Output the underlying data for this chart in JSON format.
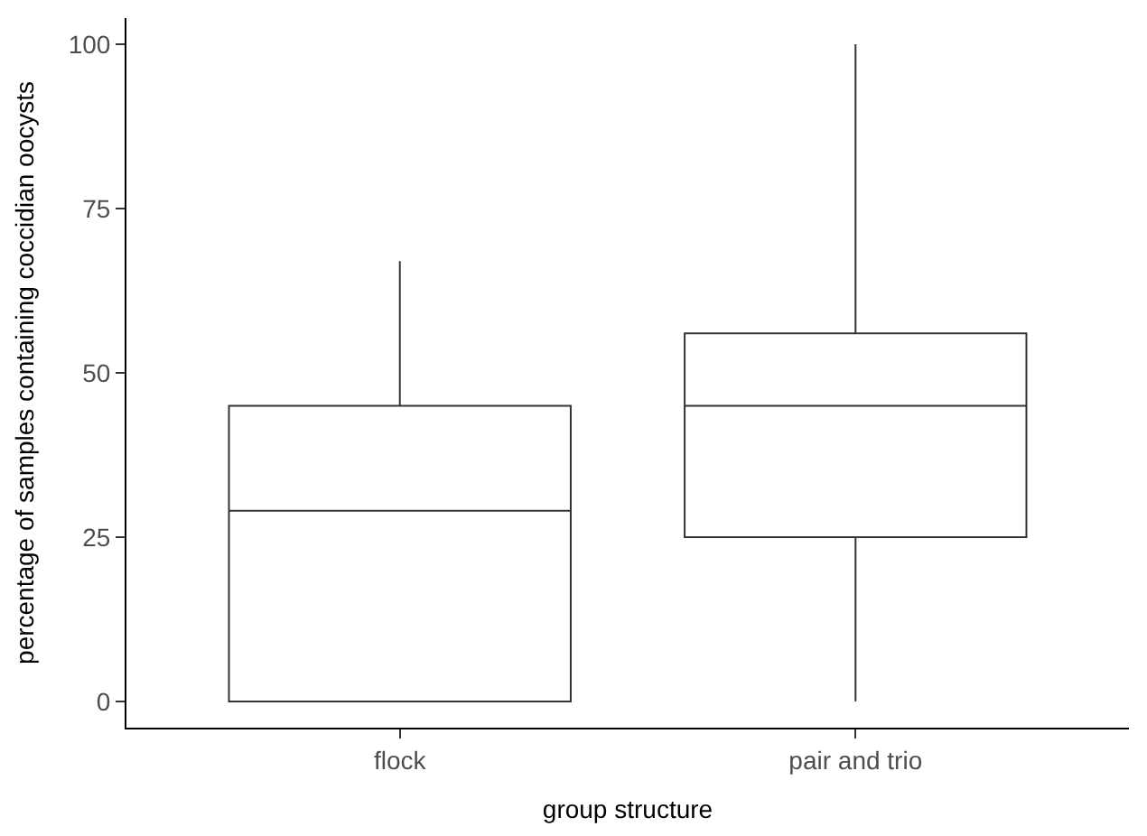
{
  "chart_data": {
    "type": "box",
    "xlabel": "group structure",
    "ylabel": "percentage of samples containing coccidian oocysts",
    "categories": [
      "flock",
      "pair and trio"
    ],
    "boxes": [
      {
        "low": 0,
        "q1": 0,
        "median": 29,
        "q3": 45,
        "high": 67
      },
      {
        "low": 0,
        "q1": 25,
        "median": 45,
        "q3": 56,
        "high": 100
      }
    ],
    "color": "#333333",
    "ylim": [
      -4,
      104
    ],
    "yticks": [
      0,
      25,
      50,
      75,
      100
    ]
  }
}
